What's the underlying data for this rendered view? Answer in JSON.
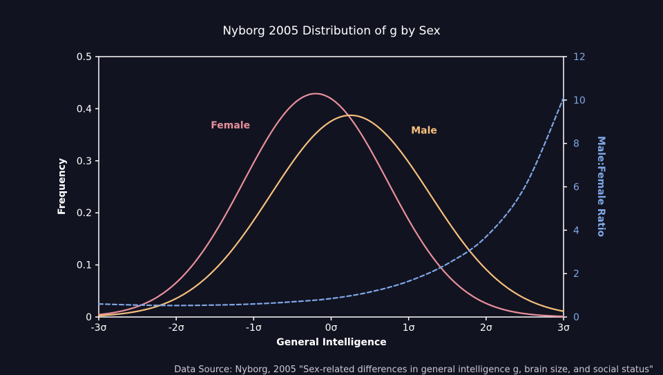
{
  "chart_data": {
    "type": "line",
    "title": "Nyborg 2005 Distribution of g by Sex",
    "xlabel": "General Intelligence",
    "ylabel": "Frequency",
    "y2label": "Male:Female Ratio",
    "xlim": [
      -3,
      3
    ],
    "ylim": [
      0,
      0.5
    ],
    "y2lim": [
      0,
      12
    ],
    "x_ticks": [
      -3,
      -2,
      -1,
      0,
      1,
      2,
      3
    ],
    "x_tick_labels": [
      "-3σ",
      "-2σ",
      "-1σ",
      "0σ",
      "1σ",
      "2σ",
      "3σ"
    ],
    "y_ticks": [
      0,
      0.1,
      0.2,
      0.3,
      0.4,
      0.5
    ],
    "y_tick_labels": [
      "0",
      "0.1",
      "0.2",
      "0.3",
      "0.4",
      "0.5"
    ],
    "y2_ticks": [
      0,
      2,
      4,
      6,
      8,
      10,
      12
    ],
    "y2_tick_labels": [
      "0",
      "2",
      "4",
      "6",
      "8",
      "10",
      "12"
    ],
    "series": [
      {
        "name": "Female",
        "axis": "left",
        "style": "solid",
        "color": "#e8909c",
        "distribution": {
          "mean": -0.2,
          "sd": 0.93
        },
        "x": [
          -3,
          -2.5,
          -2,
          -1.5,
          -1,
          -0.5,
          -0.2,
          0,
          0.5,
          1,
          1.5,
          2,
          2.5,
          3
        ],
        "values": [
          0.004,
          0.021,
          0.063,
          0.164,
          0.293,
          0.407,
          0.429,
          0.418,
          0.325,
          0.189,
          0.079,
          0.025,
          0.006,
          0.001
        ]
      },
      {
        "name": "Male",
        "axis": "left",
        "style": "solid",
        "color": "#f6c07e",
        "distribution": {
          "mean": 0.25,
          "sd": 1.03
        },
        "x": [
          -3,
          -2.5,
          -2,
          -1.5,
          -1,
          -0.5,
          0,
          0.25,
          0.5,
          1,
          1.5,
          2,
          2.5,
          3
        ],
        "values": [
          0.002,
          0.011,
          0.034,
          0.091,
          0.177,
          0.296,
          0.376,
          0.387,
          0.376,
          0.296,
          0.177,
          0.091,
          0.034,
          0.011
        ]
      },
      {
        "name": "Male:Female Ratio",
        "axis": "right",
        "style": "dashed",
        "color": "#7ea7e6",
        "x": [
          -3,
          -2.5,
          -2,
          -1.5,
          -1,
          -0.5,
          0,
          0.5,
          1,
          1.5,
          2,
          2.5,
          3
        ],
        "values": [
          0.6,
          0.55,
          0.53,
          0.55,
          0.6,
          0.7,
          0.85,
          1.15,
          1.65,
          2.45,
          3.7,
          6.0,
          10.1
        ]
      }
    ],
    "annotations": [
      {
        "text": "Female",
        "x": -1.3,
        "y": 0.362,
        "color": "#e8909c"
      },
      {
        "text": "Male",
        "x": 1.2,
        "y": 0.352,
        "color": "#f6c07e"
      }
    ],
    "legend": "none",
    "grid": false
  },
  "footer": {
    "source": "Data Source: Nyborg, 2005 \"Sex-related differences in general intelligence g, brain size, and social status\""
  }
}
